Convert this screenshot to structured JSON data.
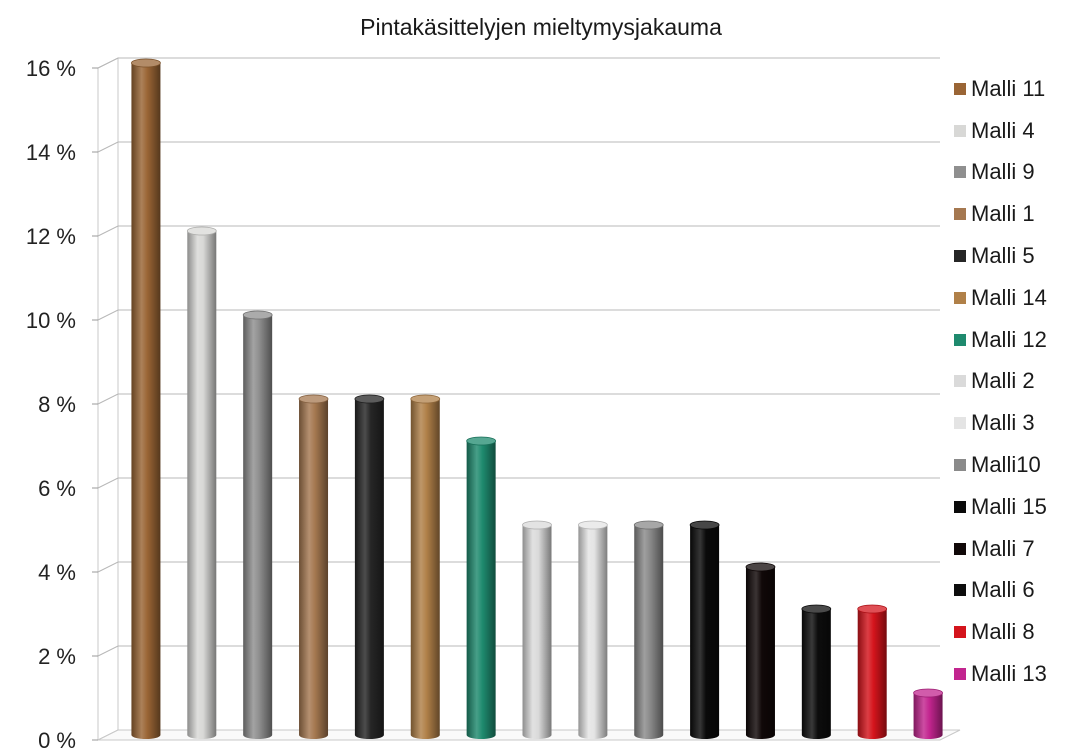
{
  "chart_data": {
    "type": "bar",
    "title": "Pintakäsittelyjen mieltymysjakauma",
    "xlabel": "",
    "ylabel": "",
    "ylim": [
      0,
      16
    ],
    "yticks": [
      "0 %",
      "2 %",
      "4 %",
      "6 %",
      "8 %",
      "10 %",
      "12 %",
      "14 %",
      "16 %"
    ],
    "grid": true,
    "legend_position": "right",
    "categories": [
      "Malli 11",
      "Malli 4",
      "Malli 9",
      "Malli 1",
      "Malli 5",
      "Malli 14",
      "Malli 12",
      "Malli 2",
      "Malli 3",
      "Malli10",
      "Malli 15",
      "Malli 7",
      "Malli 6",
      "Malli 8",
      "Malli 13"
    ],
    "values": [
      16,
      12,
      10,
      8,
      8,
      8,
      7,
      5,
      5,
      5,
      5,
      4,
      3,
      3,
      1
    ],
    "colors": [
      "#9a6535",
      "#d8d8d6",
      "#8f8f8f",
      "#a57850",
      "#262626",
      "#b08048",
      "#1e8a6e",
      "#dadada",
      "#e4e4e4",
      "#8a8a8a",
      "#0a0a0a",
      "#100808",
      "#0d0d0d",
      "#d4141c",
      "#c2258f"
    ]
  }
}
